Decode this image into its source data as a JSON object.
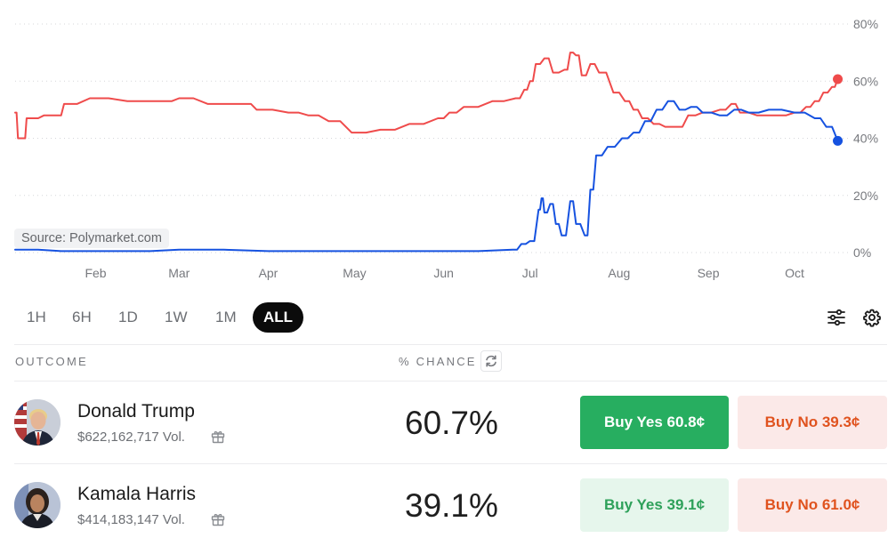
{
  "chart": {
    "source_label": "Source: Polymarket.com",
    "colors": {
      "trump": "#ef4b4b",
      "harris": "#1652e0",
      "grid": "#d6d7da",
      "axis_text": "#77797e"
    }
  },
  "chart_data": {
    "type": "line",
    "title": "",
    "xlabel": "",
    "ylabel": "",
    "x_ticks": [
      "Feb",
      "Mar",
      "Apr",
      "May",
      "Jun",
      "Jul",
      "Aug",
      "Sep",
      "Oct"
    ],
    "y_ticks": [
      "0%",
      "20%",
      "40%",
      "60%",
      "80%"
    ],
    "ylim": [
      0,
      80
    ],
    "xlim": [
      "2024-01-04",
      "2024-10-18"
    ],
    "grid": true,
    "series": [
      {
        "key": "trump",
        "color": "#ef4b4b",
        "points": [
          [
            "2024-01-04",
            49
          ],
          [
            "2024-01-05",
            40
          ],
          [
            "2024-01-07",
            40
          ],
          [
            "2024-01-08",
            47
          ],
          [
            "2024-01-10",
            47
          ],
          [
            "2024-01-14",
            48
          ],
          [
            "2024-01-19",
            48
          ],
          [
            "2024-01-21",
            52
          ],
          [
            "2024-01-30",
            54
          ],
          [
            "2024-02-12",
            53
          ],
          [
            "2024-02-25",
            53
          ],
          [
            "2024-03-01",
            54
          ],
          [
            "2024-03-11",
            52
          ],
          [
            "2024-03-24",
            52
          ],
          [
            "2024-03-28",
            50
          ],
          [
            "2024-04-08",
            49
          ],
          [
            "2024-04-15",
            48
          ],
          [
            "2024-04-22",
            46
          ],
          [
            "2024-04-30",
            42
          ],
          [
            "2024-05-10",
            43
          ],
          [
            "2024-05-20",
            45
          ],
          [
            "2024-05-30",
            47
          ],
          [
            "2024-06-03",
            49
          ],
          [
            "2024-06-08",
            51
          ],
          [
            "2024-06-18",
            53
          ],
          [
            "2024-06-26",
            54
          ],
          [
            "2024-06-29",
            57
          ],
          [
            "2024-07-01",
            60
          ],
          [
            "2024-07-03",
            66
          ],
          [
            "2024-07-06",
            68
          ],
          [
            "2024-07-09",
            63
          ],
          [
            "2024-07-13",
            64
          ],
          [
            "2024-07-15",
            70
          ],
          [
            "2024-07-17",
            69
          ],
          [
            "2024-07-19",
            62
          ],
          [
            "2024-07-22",
            66
          ],
          [
            "2024-07-25",
            63
          ],
          [
            "2024-07-30",
            56
          ],
          [
            "2024-08-03",
            53
          ],
          [
            "2024-08-06",
            50
          ],
          [
            "2024-08-09",
            47
          ],
          [
            "2024-08-13",
            45
          ],
          [
            "2024-08-17",
            44
          ],
          [
            "2024-08-21",
            44
          ],
          [
            "2024-08-25",
            48
          ],
          [
            "2024-08-30",
            49
          ],
          [
            "2024-09-05",
            50
          ],
          [
            "2024-09-09",
            52
          ],
          [
            "2024-09-12",
            49
          ],
          [
            "2024-09-18",
            48
          ],
          [
            "2024-09-25",
            48
          ],
          [
            "2024-10-01",
            49
          ],
          [
            "2024-10-05",
            51
          ],
          [
            "2024-10-08",
            53
          ],
          [
            "2024-10-11",
            56
          ],
          [
            "2024-10-14",
            58
          ],
          [
            "2024-10-16",
            60.7
          ]
        ]
      },
      {
        "key": "harris",
        "color": "#1652e0",
        "points": [
          [
            "2024-01-04",
            1
          ],
          [
            "2024-01-20",
            0.5
          ],
          [
            "2024-02-10",
            0.5
          ],
          [
            "2024-03-01",
            1
          ],
          [
            "2024-04-01",
            0.5
          ],
          [
            "2024-05-01",
            0.5
          ],
          [
            "2024-06-01",
            0.5
          ],
          [
            "2024-06-25",
            1
          ],
          [
            "2024-06-28",
            3
          ],
          [
            "2024-07-01",
            4
          ],
          [
            "2024-07-04",
            15
          ],
          [
            "2024-07-05",
            19
          ],
          [
            "2024-07-06",
            14
          ],
          [
            "2024-07-08",
            17
          ],
          [
            "2024-07-10",
            10
          ],
          [
            "2024-07-12",
            6
          ],
          [
            "2024-07-15",
            18
          ],
          [
            "2024-07-17",
            10
          ],
          [
            "2024-07-20",
            6
          ],
          [
            "2024-07-22",
            22
          ],
          [
            "2024-07-24",
            34
          ],
          [
            "2024-07-28",
            37
          ],
          [
            "2024-08-02",
            40
          ],
          [
            "2024-08-06",
            42
          ],
          [
            "2024-08-10",
            46
          ],
          [
            "2024-08-14",
            50
          ],
          [
            "2024-08-18",
            53
          ],
          [
            "2024-08-22",
            50
          ],
          [
            "2024-08-26",
            51
          ],
          [
            "2024-08-30",
            49
          ],
          [
            "2024-09-05",
            48
          ],
          [
            "2024-09-10",
            50
          ],
          [
            "2024-09-15",
            49
          ],
          [
            "2024-09-22",
            50
          ],
          [
            "2024-10-01",
            49
          ],
          [
            "2024-10-08",
            47
          ],
          [
            "2024-10-12",
            44
          ],
          [
            "2024-10-16",
            39.1
          ]
        ]
      }
    ]
  },
  "time_range": {
    "options": [
      "1H",
      "6H",
      "1D",
      "1W",
      "1M",
      "ALL"
    ],
    "selected": "ALL"
  },
  "table": {
    "outcome_header": "OUTCOME",
    "chance_header": "% CHANCE",
    "rows": [
      {
        "name": "Donald Trump",
        "volume": "$622,162,717 Vol.",
        "chance": "60.7%",
        "buy_yes": "Buy Yes 60.8¢",
        "buy_no": "Buy No 39.3¢"
      },
      {
        "name": "Kamala Harris",
        "volume": "$414,183,147 Vol.",
        "chance": "39.1%",
        "buy_yes": "Buy Yes 39.1¢",
        "buy_no": "Buy No 61.0¢"
      }
    ]
  }
}
